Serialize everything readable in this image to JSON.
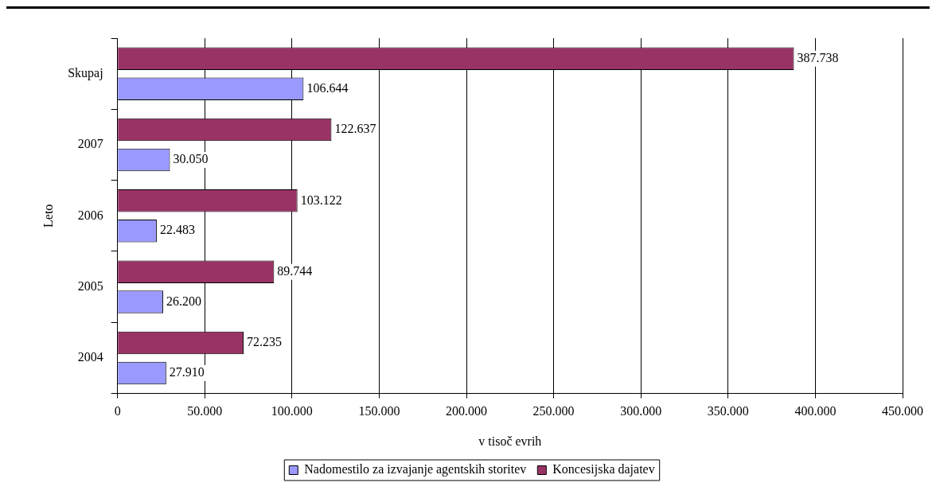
{
  "chart_data": {
    "type": "bar",
    "orientation": "horizontal",
    "ylabel": "Leto",
    "xlabel": "v tisoč evrih",
    "categories": [
      "Skupaj",
      "2007",
      "2006",
      "2005",
      "2004"
    ],
    "series": [
      {
        "name": "Nadomestilo za izvajanje agentskih storitev",
        "color": "#9999ff",
        "values": [
          106644,
          30050,
          22483,
          26200,
          27910
        ],
        "value_labels": [
          "106.644",
          "30.050",
          "22.483",
          "26.200",
          "27.910"
        ]
      },
      {
        "name": "Koncesijska dajatev",
        "color": "#993366",
        "values": [
          387738,
          122637,
          103122,
          89744,
          72235
        ],
        "value_labels": [
          "387.738",
          "122.637",
          "103.122",
          "89.744",
          "72.235"
        ]
      }
    ],
    "xlim": [
      0,
      450000
    ],
    "xticks": [
      0,
      {
        "value": 50000,
        "label": "50.000"
      },
      {
        "value": 100000,
        "label": "100.000"
      },
      {
        "value": 150000,
        "label": "150.000"
      },
      {
        "value": 200000,
        "label": "200.000"
      },
      {
        "value": 250000,
        "label": "250.000"
      },
      {
        "value": 300000,
        "label": "300.000"
      },
      {
        "value": 350000,
        "label": "350.000"
      },
      {
        "value": 400000,
        "label": "400.000"
      },
      {
        "value": 450000,
        "label": "450.000"
      }
    ],
    "grid": "x",
    "legend": "bottom"
  }
}
